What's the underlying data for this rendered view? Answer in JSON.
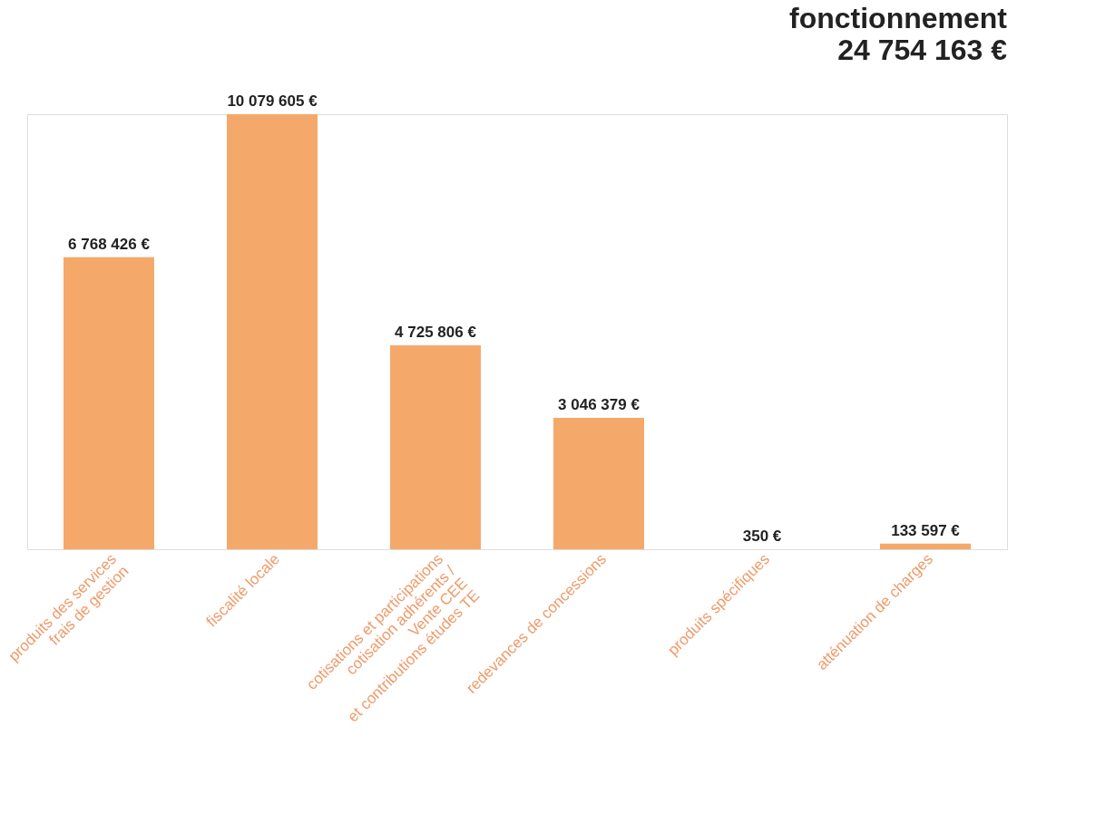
{
  "chart_data": {
    "type": "bar",
    "title": "fonctionnement",
    "subtitle": "24 754 163 €",
    "categories": [
      "produits des services\nfrais de gestion",
      "fiscalité locale",
      "cotisations et participations\ncotisation adhérents /\nVente CEE\net contributions études TE",
      "redevances de concessions",
      "produits spécifiques",
      "atténuation de charges"
    ],
    "values": [
      6768426,
      10079605,
      4725806,
      3046379,
      350,
      133597
    ],
    "value_labels": [
      "6 768 426 €",
      "10 079 605 €",
      "4 725 806 €",
      "3 046 379 €",
      "350 €",
      "133 597 €"
    ],
    "color": "#f4a96a"
  }
}
